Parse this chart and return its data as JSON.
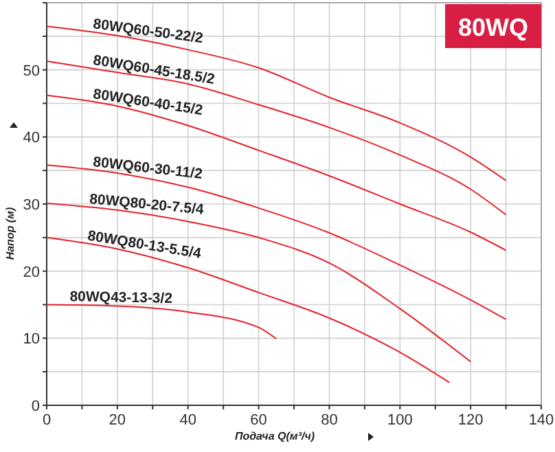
{
  "chart_data": {
    "type": "line",
    "xlabel": "Подача Q(м³/ч)",
    "ylabel": "Напор (м)",
    "annotations": [
      "80WQ"
    ],
    "xlim": [
      0,
      140
    ],
    "ylim": [
      0,
      60
    ],
    "xticks": [
      0,
      {
        "value": 10,
        "label": null
      },
      20,
      {
        "value": 30,
        "label": null
      },
      40,
      {
        "value": 50,
        "label": null
      },
      60,
      {
        "value": 70,
        "label": null
      },
      80,
      {
        "value": 90,
        "label": null
      },
      100,
      {
        "value": 110,
        "label": null
      },
      120,
      {
        "value": 130,
        "label": null
      },
      140
    ],
    "yticks": [
      0,
      {
        "value": 5,
        "label": null
      },
      10,
      {
        "value": 15,
        "label": null
      },
      20,
      {
        "value": 25,
        "label": null
      },
      30,
      {
        "value": 35,
        "label": null
      },
      40,
      {
        "value": 45,
        "label": null
      },
      50,
      {
        "value": 55,
        "label": null
      },
      {
        "value": 60,
        "label": null
      }
    ],
    "grid": true,
    "marker": "none",
    "line_style": "solid",
    "series": [
      {
        "name": "80WQ60-50-22/2",
        "color": "#e8202a",
        "x": [
          0,
          20,
          40,
          60,
          80,
          100,
          120,
          130
        ],
        "values": [
          56.5,
          55.1,
          53,
          50.3,
          45.9,
          42.1,
          37,
          33.5
        ]
      },
      {
        "name": "80WQ60-45-18.5/2",
        "color": "#e8202a",
        "x": [
          0,
          20,
          40,
          60,
          80,
          100,
          120,
          130
        ],
        "values": [
          51.3,
          49.6,
          47.9,
          44.8,
          41.4,
          37.3,
          32.2,
          28.4
        ]
      },
      {
        "name": "80WQ60-40-15/2",
        "color": "#e8202a",
        "x": [
          0,
          20,
          40,
          60,
          80,
          100,
          120,
          130
        ],
        "values": [
          46.2,
          44.6,
          41.7,
          38,
          34.2,
          30,
          25.8,
          23.1
        ]
      },
      {
        "name": "80WQ60-30-11/2",
        "color": "#e8202a",
        "x": [
          0,
          20,
          40,
          60,
          80,
          100,
          120,
          130
        ],
        "values": [
          35.8,
          34.6,
          32.5,
          29.4,
          25.7,
          20.9,
          15.7,
          12.8
        ]
      },
      {
        "name": "80WQ80-20-7.5/4",
        "color": "#e8202a",
        "x": [
          0,
          20,
          40,
          60,
          80,
          100,
          120
        ],
        "values": [
          30.1,
          29.1,
          27.4,
          25,
          21.2,
          14.4,
          6.5
        ]
      },
      {
        "name": "80WQ80-13-5.5/4",
        "color": "#e8202a",
        "x": [
          0,
          20,
          40,
          60,
          80,
          100,
          114
        ],
        "values": [
          25,
          23.3,
          20.5,
          16.8,
          13,
          7.9,
          3.4
        ]
      },
      {
        "name": "80WQ43-13-3/2",
        "color": "#e8202a",
        "x": [
          0,
          20,
          40,
          60,
          65
        ],
        "values": [
          15,
          14.8,
          13.9,
          11.6,
          9.9
        ]
      }
    ]
  }
}
